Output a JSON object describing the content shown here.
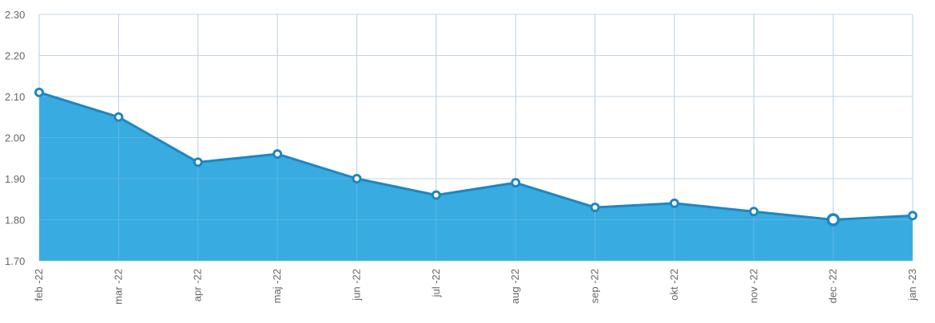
{
  "chart_data": {
    "type": "area",
    "title": "",
    "xlabel": "",
    "ylabel": "",
    "categories": [
      "feb -22",
      "mar -22",
      "apr -22",
      "maj -22",
      "jun -22",
      "jul -22",
      "aug -22",
      "sep -22",
      "okt -22",
      "nov -22",
      "dec -22",
      "jan -23"
    ],
    "series": [
      {
        "values": [
          2.11,
          2.05,
          1.94,
          1.96,
          1.9,
          1.86,
          1.89,
          1.83,
          1.84,
          1.82,
          1.8,
          1.81
        ]
      }
    ],
    "ylim": [
      1.7,
      2.3
    ],
    "yticks": [
      "1.70",
      "1.80",
      "1.90",
      "2.00",
      "2.10",
      "2.20",
      "2.30"
    ],
    "highlighted_point": "dec -22",
    "grid": true,
    "legend": "none",
    "colors": {
      "fill": "#34a9df",
      "line": "#1f86c2",
      "grid": "#b8cfe0",
      "marker_fill": "#ffffff",
      "text": "#666666"
    }
  }
}
